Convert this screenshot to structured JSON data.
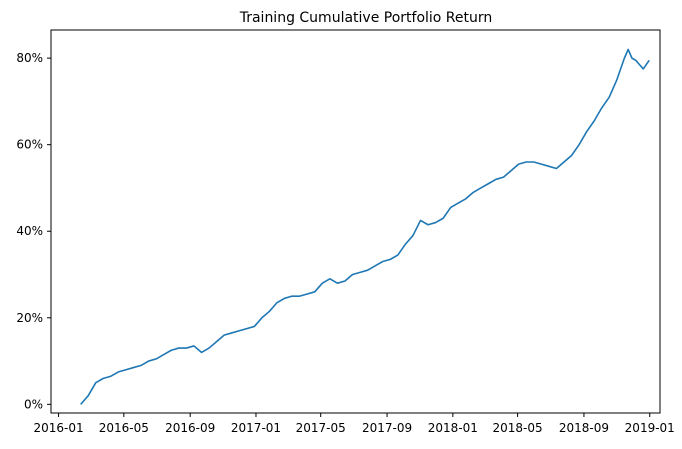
{
  "chart_data": {
    "type": "line",
    "title": "Training Cumulative Portfolio Return",
    "xlabel": "",
    "ylabel": "",
    "x_ticks": [
      "2016-01",
      "2016-05",
      "2016-09",
      "2017-01",
      "2017-05",
      "2017-09",
      "2018-01",
      "2018-05",
      "2018-09",
      "2019-01"
    ],
    "y_ticks": [
      "0%",
      "20%",
      "40%",
      "60%",
      "80%"
    ],
    "xlim": [
      "2015-12-18",
      "2019-01-20"
    ],
    "ylim": [
      -0.02,
      0.865
    ],
    "grid": false,
    "line_color": "#1f77b4",
    "series": [
      {
        "x": [
          "2016-02-11",
          "2016-02-25",
          "2016-03-10",
          "2016-03-24",
          "2016-04-07",
          "2016-04-21",
          "2016-05-05",
          "2016-05-19",
          "2016-06-02",
          "2016-06-16",
          "2016-06-30",
          "2016-07-14",
          "2016-07-28",
          "2016-08-11",
          "2016-08-25",
          "2016-09-08",
          "2016-09-22",
          "2016-10-06",
          "2016-10-20",
          "2016-11-03",
          "2016-11-17",
          "2016-12-01",
          "2016-12-15",
          "2016-12-29",
          "2017-01-12",
          "2017-01-26",
          "2017-02-09",
          "2017-02-23",
          "2017-03-09",
          "2017-03-23",
          "2017-04-06",
          "2017-04-20",
          "2017-05-04",
          "2017-05-18",
          "2017-06-01",
          "2017-06-15",
          "2017-06-29",
          "2017-07-13",
          "2017-07-27",
          "2017-08-10",
          "2017-08-24",
          "2017-09-07",
          "2017-09-21",
          "2017-10-05",
          "2017-10-19",
          "2017-11-02",
          "2017-11-16",
          "2017-11-30",
          "2017-12-14",
          "2017-12-28",
          "2018-01-11",
          "2018-01-25",
          "2018-02-08",
          "2018-02-22",
          "2018-03-08",
          "2018-03-22",
          "2018-04-05",
          "2018-04-19",
          "2018-05-03",
          "2018-05-17",
          "2018-05-31",
          "2018-06-14",
          "2018-06-28",
          "2018-07-12",
          "2018-07-26",
          "2018-08-09",
          "2018-08-23",
          "2018-09-06",
          "2018-09-20",
          "2018-10-04",
          "2018-10-18",
          "2018-11-01",
          "2018-11-15",
          "2018-11-22",
          "2018-11-29",
          "2018-12-06",
          "2018-12-13",
          "2018-12-20",
          "2018-12-31"
        ],
        "values": [
          0.0,
          0.02,
          0.05,
          0.06,
          0.065,
          0.075,
          0.08,
          0.085,
          0.09,
          0.1,
          0.105,
          0.115,
          0.125,
          0.13,
          0.13,
          0.135,
          0.12,
          0.13,
          0.145,
          0.16,
          0.165,
          0.17,
          0.175,
          0.18,
          0.2,
          0.215,
          0.235,
          0.245,
          0.25,
          0.25,
          0.255,
          0.26,
          0.28,
          0.29,
          0.28,
          0.285,
          0.3,
          0.305,
          0.31,
          0.32,
          0.33,
          0.335,
          0.345,
          0.37,
          0.39,
          0.425,
          0.415,
          0.42,
          0.43,
          0.455,
          0.465,
          0.475,
          0.49,
          0.5,
          0.51,
          0.52,
          0.525,
          0.54,
          0.555,
          0.56,
          0.56,
          0.555,
          0.55,
          0.545,
          0.56,
          0.575,
          0.6,
          0.63,
          0.655,
          0.685,
          0.71,
          0.75,
          0.8,
          0.82,
          0.8,
          0.795,
          0.785,
          0.775,
          0.795
        ]
      }
    ]
  }
}
